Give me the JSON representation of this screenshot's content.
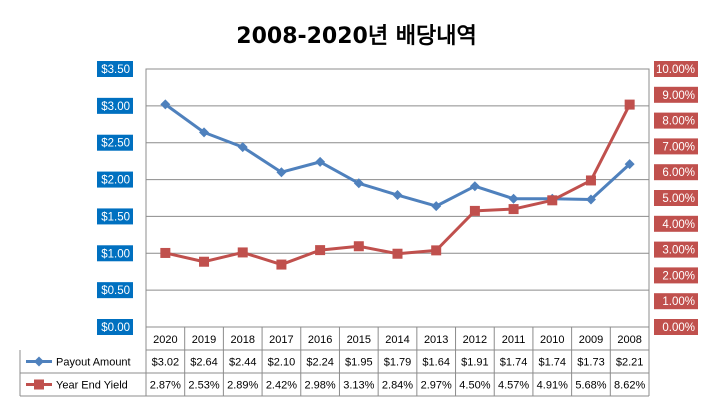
{
  "chart_data": {
    "type": "line",
    "title": "2008-2020년 배당내역",
    "categories": [
      "2020",
      "2019",
      "2018",
      "2017",
      "2016",
      "2015",
      "2014",
      "2013",
      "2012",
      "2011",
      "2010",
      "2009",
      "2008"
    ],
    "left_axis": {
      "ylim": [
        0,
        3.5
      ],
      "ticks": [
        0,
        0.5,
        1,
        1.5,
        2,
        2.5,
        3,
        3.5
      ],
      "tick_labels": [
        "$0.00",
        "$0.50",
        "$1.00",
        "$1.50",
        "$2.00",
        "$2.50",
        "$3.00",
        "$3.50"
      ],
      "label_bg": "#0070C0"
    },
    "right_axis": {
      "ylim": [
        0,
        10
      ],
      "ticks": [
        0,
        1,
        2,
        3,
        4,
        5,
        6,
        7,
        8,
        9,
        10
      ],
      "tick_labels": [
        "0.00%",
        "1.00%",
        "2.00%",
        "3.00%",
        "4.00%",
        "5.00%",
        "6.00%",
        "7.00%",
        "8.00%",
        "9.00%",
        "10.00%"
      ],
      "label_bg": "#C0504D"
    },
    "grid": true,
    "legend": "data-table-bottom",
    "series": [
      {
        "name": "Payout Amount",
        "axis": "left",
        "marker": "diamond",
        "color": "#4F81BD",
        "values": [
          3.02,
          2.64,
          2.44,
          2.1,
          2.24,
          1.95,
          1.79,
          1.64,
          1.91,
          1.74,
          1.74,
          1.73,
          2.21
        ],
        "labels": [
          "$3.02",
          "$2.64",
          "$2.44",
          "$2.10",
          "$2.24",
          "$1.95",
          "$1.79",
          "$1.64",
          "$1.91",
          "$1.74",
          "$1.74",
          "$1.73",
          "$2.21"
        ]
      },
      {
        "name": "Year End Yield",
        "axis": "right",
        "marker": "square",
        "color": "#C0504D",
        "values": [
          2.87,
          2.53,
          2.89,
          2.42,
          2.98,
          3.13,
          2.84,
          2.97,
          4.5,
          4.57,
          4.91,
          5.68,
          8.62
        ],
        "labels": [
          "2.87%",
          "2.53%",
          "2.89%",
          "2.42%",
          "2.98%",
          "3.13%",
          "2.84%",
          "2.97%",
          "4.50%",
          "4.57%",
          "4.91%",
          "5.68%",
          "8.62%"
        ]
      }
    ]
  }
}
